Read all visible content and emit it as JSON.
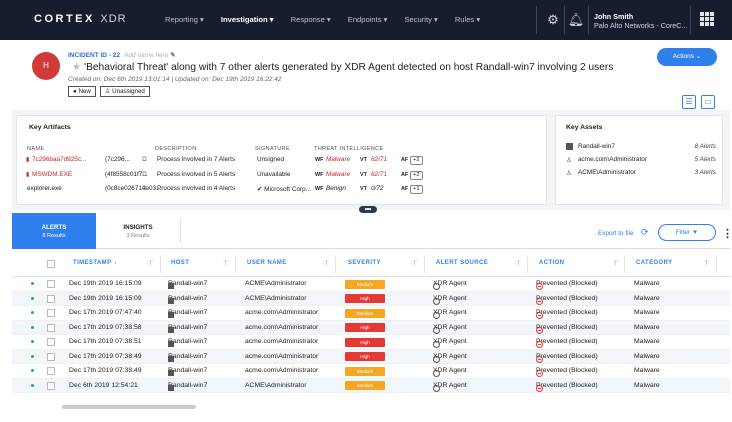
{
  "topbar": {
    "brand": "CORTEX",
    "brand_suffix": "XDR",
    "nav": [
      {
        "label": "Reporting ▾",
        "active": false
      },
      {
        "label": "Investigation ▾",
        "active": true
      },
      {
        "label": "Response ▾",
        "active": false
      },
      {
        "label": "Endpoints ▾",
        "active": false
      },
      {
        "label": "Security ▾",
        "active": false
      },
      {
        "label": "Rules ▾",
        "active": false
      }
    ],
    "user_name": "John Smith",
    "user_org": "Palo Alto Networks - CoreC..."
  },
  "incident": {
    "avatar_letter": "H",
    "id_label": "INCIDENT ID - 22",
    "name_placeholder": "Add name here",
    "title": "'Behavioral Threat' along with 7 other alerts generated by XDR Agent detected on host Randall-win7 involving 2 users",
    "dates": "Created on: Dec 6th 2019 13:01:14  |  Updated on: Dec 19th 2019 16:22:42",
    "status": "New",
    "assignee": "Unassigned",
    "actions_label": "Actions ⌄"
  },
  "key_artifacts": {
    "title": "Key Artifacts",
    "columns": [
      "NAME",
      "DESCRIPTION",
      "SIGNATURE",
      "THREAT INTELLIGENCE"
    ],
    "rows": [
      {
        "name": "7c296baa7d925c...",
        "hash": "(7c296...",
        "desc": "Process involved in 7 Alerts",
        "sig": "Unsigned",
        "wf": "Malware",
        "vt": "62/71",
        "af": "+2",
        "danger": true
      },
      {
        "name": "MSWDM.EXE",
        "hash": "(4f8558c01f7...",
        "desc": "Process involved in 5 Alerts",
        "sig": "Unavailable",
        "wf": "Malware",
        "vt": "62/71",
        "af": "+2",
        "danger": true
      },
      {
        "name": "explorer.exe",
        "hash": "(0c8ce026714e03...",
        "desc": "Process involved in 4 Alerts",
        "sig": "✔ Microsoft Corp...",
        "wf": "Benign",
        "vt": "0/72",
        "af": "+1",
        "danger": false
      }
    ]
  },
  "key_assets": {
    "title": "Key Assets",
    "rows": [
      {
        "icon": "host",
        "name": "Randall-win7",
        "count": "8 Alerts"
      },
      {
        "icon": "user",
        "name": "acme.com\\Administrator",
        "count": "5 Alerts"
      },
      {
        "icon": "user",
        "name": "ACME\\Administrator",
        "count": "3 Alerts"
      }
    ]
  },
  "tabs": [
    {
      "label": "ALERTS",
      "sub": "8 Results",
      "active": true
    },
    {
      "label": "INSIGHTS",
      "sub": "3 Results",
      "active": false
    }
  ],
  "toolbar": {
    "export": "Export to file",
    "filter": "Filter ▼"
  },
  "table": {
    "columns": [
      "TIMESTAMP",
      "HOST",
      "USER NAME",
      "SEVERITY",
      "ALERT SOURCE",
      "ACTION",
      "CATEGORY"
    ],
    "rows": [
      {
        "ts": "Dec 19th 2019 16:15:09",
        "host": "Randall-win7",
        "user": "ACME\\Administrator",
        "sev": "Medium",
        "src": "XDR Agent",
        "action": "Prevented (Blocked)",
        "cat": "Malware"
      },
      {
        "ts": "Dec 19th 2019 16:15:09",
        "host": "Randall-win7",
        "user": "ACME\\Administrator",
        "sev": "High",
        "src": "XDR Agent",
        "action": "Prevented (Blocked)",
        "cat": "Malware"
      },
      {
        "ts": "Dec 17th 2019 07:47:40",
        "host": "Randall-win7",
        "user": "acme.com\\Administrator",
        "sev": "Medium",
        "src": "XDR Agent",
        "action": "Prevented (Blocked)",
        "cat": "Malware"
      },
      {
        "ts": "Dec 17th 2019 07:38:58",
        "host": "Randall-win7",
        "user": "acme.com\\Administrator",
        "sev": "High",
        "src": "XDR Agent",
        "action": "Prevented (Blocked)",
        "cat": "Malware"
      },
      {
        "ts": "Dec 17th 2019 07:38:51",
        "host": "Randall-win7",
        "user": "acme.com\\Administrator",
        "sev": "High",
        "src": "XDR Agent",
        "action": "Prevented (Blocked)",
        "cat": "Malware"
      },
      {
        "ts": "Dec 17th 2019 07:38:49",
        "host": "Randall-win7",
        "user": "acme.com\\Administrator",
        "sev": "High",
        "src": "XDR Agent",
        "action": "Prevented (Blocked)",
        "cat": "Malware"
      },
      {
        "ts": "Dec 17th 2019 07:38:49",
        "host": "Randall-win7",
        "user": "acme.com\\Administrator",
        "sev": "Medium",
        "src": "XDR Agent",
        "action": "Prevented (Blocked)",
        "cat": "Malware"
      },
      {
        "ts": "Dec 6th 2019 12:54:21",
        "host": "Randall-win7",
        "user": "ACME\\Administrator",
        "sev": "Medium",
        "src": "XDR Agent",
        "action": "Prevented (Blocked)",
        "cat": "Malware"
      }
    ]
  }
}
